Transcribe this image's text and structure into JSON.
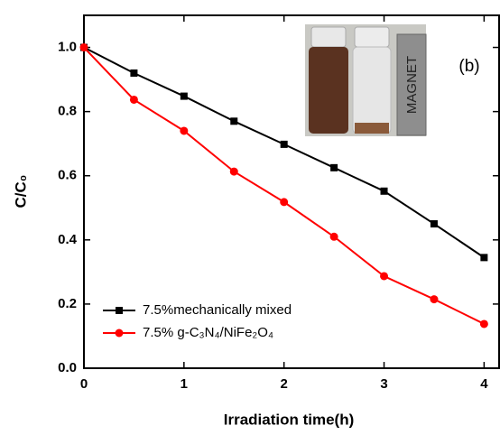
{
  "chart_data": {
    "type": "line",
    "xlabel": "Irradiation time(h)",
    "ylabel": "C/C₀",
    "x": [
      0,
      0.5,
      1,
      1.5,
      2,
      2.5,
      3,
      3.5,
      4
    ],
    "series": [
      {
        "name": "7.5%mechanically mixed",
        "color": "#000000",
        "marker": "square",
        "values": [
          1.0,
          0.92,
          0.848,
          0.77,
          0.698,
          0.625,
          0.552,
          0.45,
          0.345
        ]
      },
      {
        "name": "7.5% g-C₃N₄/NiFe₂O₄",
        "color": "#ff0000",
        "marker": "circle",
        "values": [
          1.0,
          0.837,
          0.74,
          0.613,
          0.518,
          0.41,
          0.287,
          0.215,
          0.138
        ]
      }
    ],
    "xlim": [
      0,
      4.15
    ],
    "xticks": [
      0,
      1,
      2,
      3,
      4
    ],
    "ylim": [
      0,
      1.1
    ],
    "yticks": [
      {
        "value": 0,
        "label": "0.0"
      },
      0.2,
      0.4,
      0.6,
      0.8,
      {
        "value": 1,
        "label": "1.0"
      }
    ],
    "annotations": [
      "(b)",
      "MAGNET"
    ]
  }
}
